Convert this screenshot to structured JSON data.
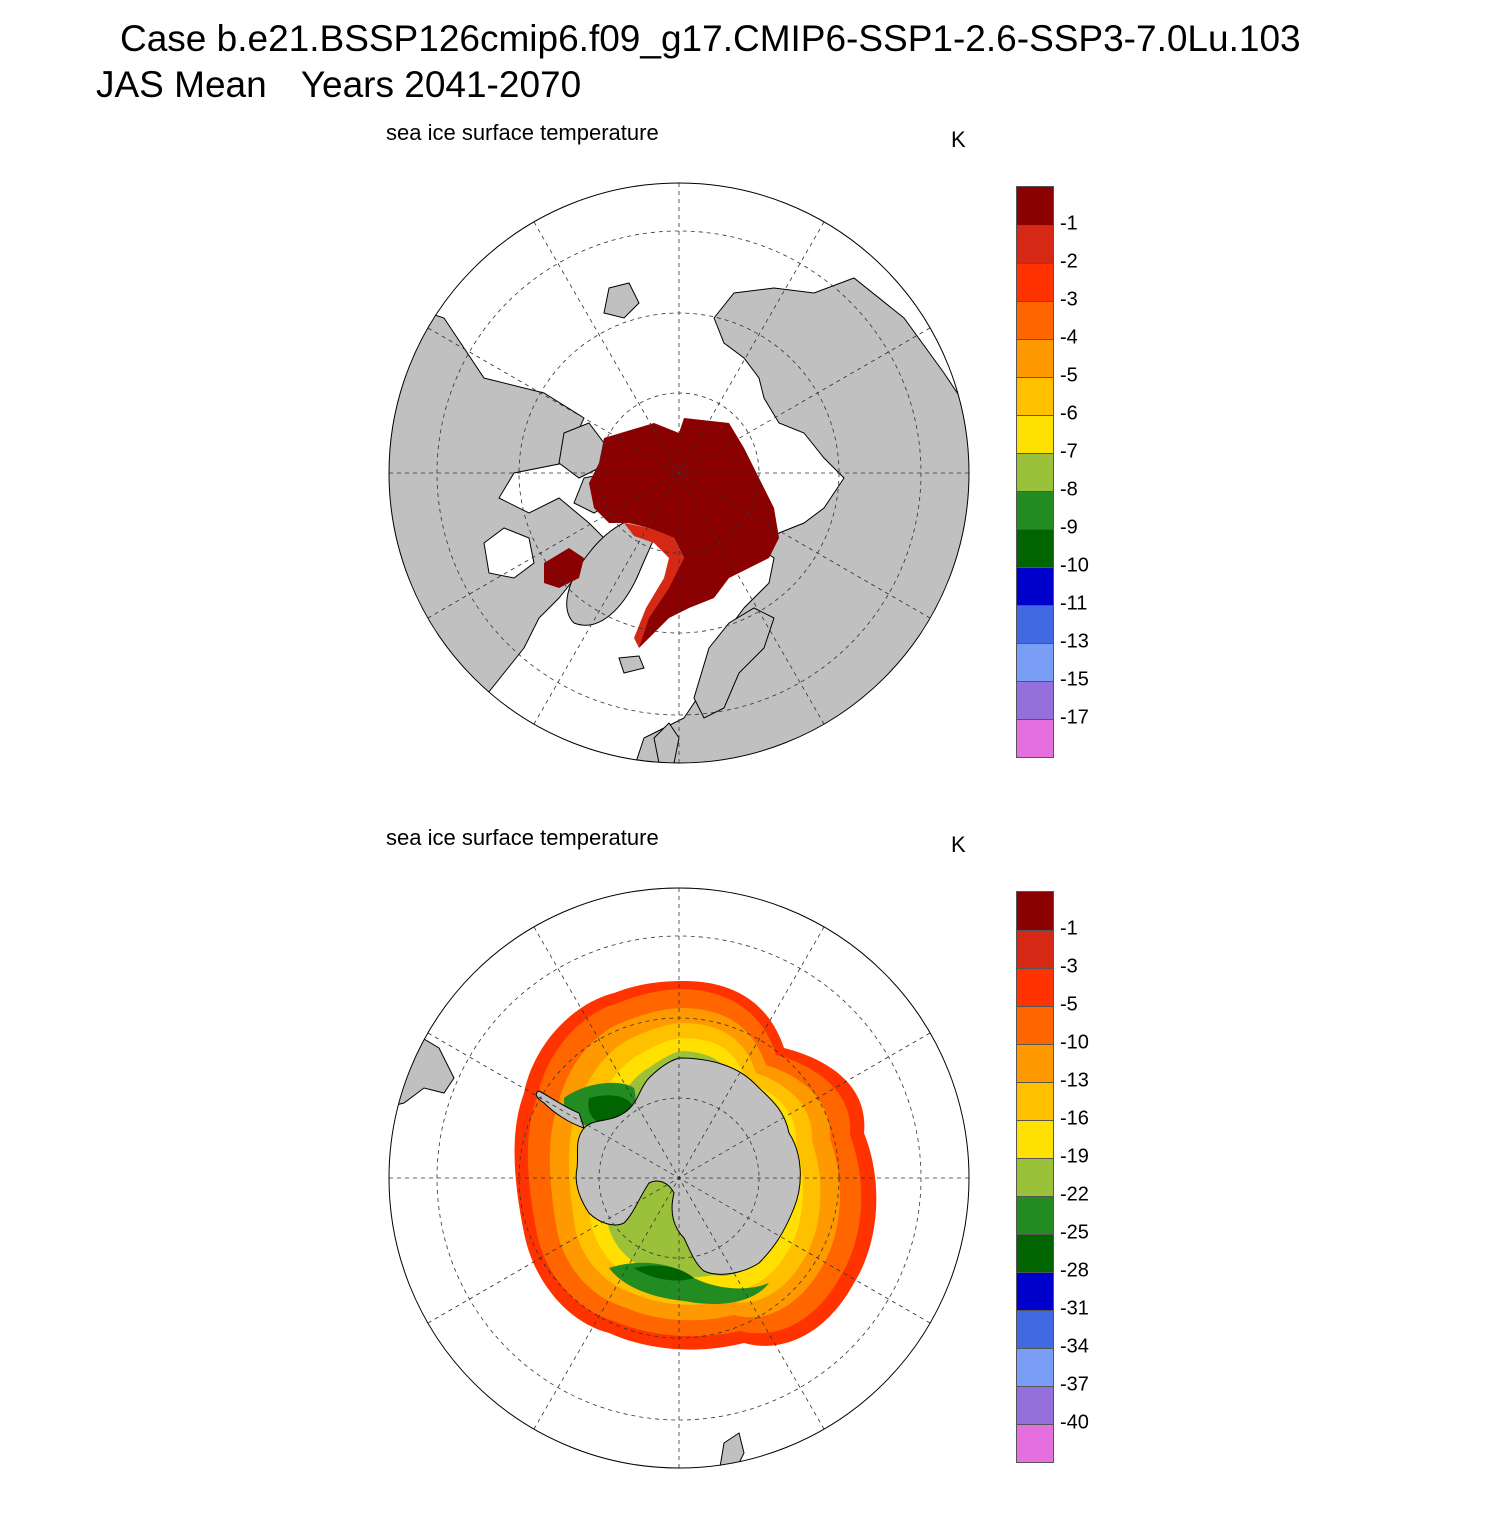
{
  "header": {
    "case_line": "Case b.e21.BSSP126cmip6.f09_g17.CMIP6-SSP1-2.6-SSP3-7.0Lu.103",
    "season": "JAS Mean",
    "years": "Years 2041-2070"
  },
  "panels": [
    {
      "title": "sea ice surface temperature",
      "units": "K",
      "hemisphere": "north",
      "colorbar": {
        "colors": [
          "#8b0000",
          "#d62915",
          "#ff3300",
          "#ff6600",
          "#ff9900",
          "#ffc000",
          "#ffe000",
          "#9bc03a",
          "#228b22",
          "#006400",
          "#0000cd",
          "#4169e1",
          "#7a9ef5",
          "#9370db",
          "#e470e0"
        ],
        "labels": [
          "-1",
          "-2",
          "-3",
          "-4",
          "-5",
          "-6",
          "-7",
          "-8",
          "-9",
          "-10",
          "-11",
          "-13",
          "-15",
          "-17"
        ]
      }
    },
    {
      "title": "sea ice surface temperature",
      "units": "K",
      "hemisphere": "south",
      "colorbar": {
        "colors": [
          "#8b0000",
          "#d62915",
          "#ff3300",
          "#ff6600",
          "#ff9900",
          "#ffc000",
          "#ffe000",
          "#9bc03a",
          "#228b22",
          "#006400",
          "#0000cd",
          "#4169e1",
          "#7a9ef5",
          "#9370db",
          "#e470e0"
        ],
        "labels": [
          "-1",
          "-3",
          "-5",
          "-10",
          "-13",
          "-16",
          "-19",
          "-22",
          "-25",
          "-28",
          "-31",
          "-34",
          "-37",
          "-40"
        ]
      }
    }
  ],
  "map_colors": {
    "land": "#c0c0c0",
    "ocean": "#ffffff"
  }
}
